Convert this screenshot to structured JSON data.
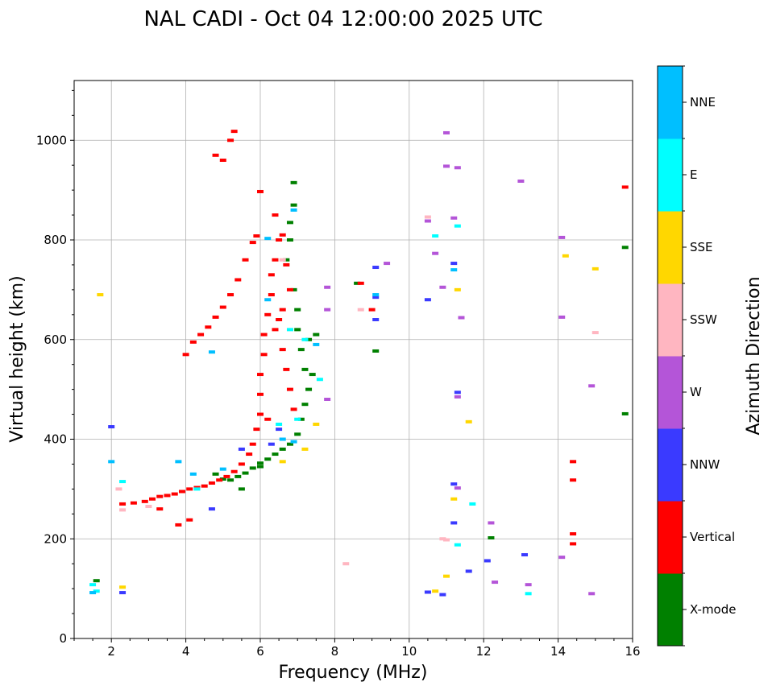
{
  "chart_data": {
    "type": "scatter",
    "title": "NAL CADI - Oct 04 12:00:00 2025 UTC",
    "xlabel": "Frequency (MHz)",
    "ylabel": "Virtual height (km)",
    "xlim": [
      1,
      16
    ],
    "ylim": [
      0,
      1120
    ],
    "xticks": [
      2,
      4,
      6,
      8,
      10,
      12,
      14,
      16
    ],
    "yticks": [
      0,
      200,
      400,
      600,
      800,
      1000
    ],
    "grid": true,
    "colorbar": {
      "title": "Azimuth Direction",
      "categories": [
        {
          "name": "X-mode",
          "color": "#008000"
        },
        {
          "name": "Vertical",
          "color": "#ff0000"
        },
        {
          "name": "NNW",
          "color": "#3a3aff"
        },
        {
          "name": "W",
          "color": "#b455d8"
        },
        {
          "name": "SSW",
          "color": "#ffb6c1"
        },
        {
          "name": "SSE",
          "color": "#ffd700"
        },
        {
          "name": "E",
          "color": "#00ffff"
        },
        {
          "name": "NNE",
          "color": "#00bfff"
        }
      ]
    },
    "series": [
      {
        "name": "X-mode",
        "points": [
          [
            5.0,
            320
          ],
          [
            5.2,
            318
          ],
          [
            5.4,
            325
          ],
          [
            5.6,
            332
          ],
          [
            5.8,
            342
          ],
          [
            6.0,
            352
          ],
          [
            6.2,
            360
          ],
          [
            6.4,
            370
          ],
          [
            6.6,
            380
          ],
          [
            6.8,
            390
          ],
          [
            7.0,
            410
          ],
          [
            7.1,
            440
          ],
          [
            7.2,
            470
          ],
          [
            7.3,
            500
          ],
          [
            7.2,
            540
          ],
          [
            7.1,
            580
          ],
          [
            7.0,
            620
          ],
          [
            7.3,
            600
          ],
          [
            7.5,
            610
          ],
          [
            7.0,
            660
          ],
          [
            6.9,
            700
          ],
          [
            6.7,
            760
          ],
          [
            6.8,
            800
          ],
          [
            6.8,
            835
          ],
          [
            6.9,
            870
          ],
          [
            6.9,
            915
          ],
          [
            9.1,
            577
          ],
          [
            8.6,
            713
          ],
          [
            12.2,
            202
          ],
          [
            15.8,
            785
          ],
          [
            15.8,
            451
          ],
          [
            1.6,
            116
          ],
          [
            5.5,
            300
          ],
          [
            4.8,
            330
          ],
          [
            6.0,
            345
          ],
          [
            7.4,
            530
          ]
        ]
      },
      {
        "name": "Vertical",
        "points": [
          [
            2.3,
            270
          ],
          [
            2.6,
            272
          ],
          [
            2.9,
            275
          ],
          [
            3.1,
            280
          ],
          [
            3.3,
            285
          ],
          [
            3.5,
            287
          ],
          [
            3.7,
            290
          ],
          [
            3.9,
            295
          ],
          [
            4.1,
            300
          ],
          [
            4.3,
            303
          ],
          [
            4.5,
            306
          ],
          [
            4.7,
            312
          ],
          [
            4.9,
            318
          ],
          [
            5.1,
            325
          ],
          [
            5.3,
            335
          ],
          [
            5.5,
            350
          ],
          [
            5.7,
            370
          ],
          [
            5.8,
            390
          ],
          [
            5.9,
            420
          ],
          [
            6.0,
            450
          ],
          [
            6.0,
            490
          ],
          [
            6.0,
            530
          ],
          [
            6.1,
            570
          ],
          [
            6.1,
            610
          ],
          [
            6.2,
            650
          ],
          [
            6.3,
            690
          ],
          [
            6.3,
            730
          ],
          [
            6.4,
            760
          ],
          [
            6.5,
            800
          ],
          [
            6.4,
            850
          ],
          [
            6.6,
            810
          ],
          [
            6.7,
            750
          ],
          [
            6.8,
            700
          ],
          [
            6.6,
            660
          ],
          [
            6.4,
            620
          ],
          [
            6.6,
            580
          ],
          [
            6.7,
            540
          ],
          [
            6.8,
            500
          ],
          [
            6.9,
            460
          ],
          [
            6.5,
            640
          ],
          [
            4.0,
            570
          ],
          [
            4.2,
            595
          ],
          [
            4.4,
            610
          ],
          [
            4.6,
            625
          ],
          [
            4.8,
            645
          ],
          [
            5.0,
            665
          ],
          [
            5.2,
            690
          ],
          [
            5.4,
            720
          ],
          [
            5.6,
            760
          ],
          [
            5.8,
            795
          ],
          [
            5.9,
            808
          ],
          [
            4.8,
            970
          ],
          [
            5.0,
            960
          ],
          [
            5.2,
            1000
          ],
          [
            5.3,
            1018
          ],
          [
            6.0,
            897
          ],
          [
            8.7,
            713
          ],
          [
            9.0,
            660
          ],
          [
            14.4,
            355
          ],
          [
            14.4,
            318
          ],
          [
            14.4,
            210
          ],
          [
            14.4,
            190
          ],
          [
            15.8,
            906
          ],
          [
            3.8,
            228
          ],
          [
            4.1,
            238
          ],
          [
            3.3,
            260
          ],
          [
            6.2,
            440
          ]
        ]
      },
      {
        "name": "NNW",
        "points": [
          [
            2.3,
            92
          ],
          [
            2.0,
            425
          ],
          [
            9.1,
            745
          ],
          [
            9.1,
            640
          ],
          [
            9.1,
            685
          ],
          [
            10.5,
            680
          ],
          [
            10.5,
            93
          ],
          [
            10.9,
            88
          ],
          [
            11.2,
            753
          ],
          [
            11.3,
            494
          ],
          [
            11.2,
            310
          ],
          [
            11.2,
            232
          ],
          [
            11.6,
            135
          ],
          [
            12.1,
            156
          ],
          [
            13.1,
            168
          ],
          [
            4.7,
            260
          ],
          [
            5.5,
            380
          ],
          [
            6.5,
            420
          ],
          [
            6.3,
            390
          ]
        ]
      },
      {
        "name": "W",
        "points": [
          [
            7.8,
            705
          ],
          [
            7.8,
            660
          ],
          [
            7.8,
            480
          ],
          [
            9.4,
            753
          ],
          [
            10.5,
            838
          ],
          [
            10.7,
            773
          ],
          [
            11.0,
            1015
          ],
          [
            11.0,
            948
          ],
          [
            11.3,
            945
          ],
          [
            11.2,
            844
          ],
          [
            11.4,
            644
          ],
          [
            11.3,
            485
          ],
          [
            11.3,
            302
          ],
          [
            12.2,
            232
          ],
          [
            12.3,
            113
          ],
          [
            13.0,
            918
          ],
          [
            13.2,
            108
          ],
          [
            14.1,
            805
          ],
          [
            14.1,
            645
          ],
          [
            14.1,
            163
          ],
          [
            14.9,
            507
          ],
          [
            14.9,
            90
          ],
          [
            10.9,
            705
          ]
        ]
      },
      {
        "name": "SSW",
        "points": [
          [
            2.2,
            300
          ],
          [
            2.3,
            258
          ],
          [
            8.3,
            150
          ],
          [
            8.7,
            660
          ],
          [
            10.5,
            846
          ],
          [
            10.9,
            200
          ],
          [
            11.0,
            198
          ],
          [
            15.0,
            614
          ],
          [
            6.6,
            760
          ],
          [
            3.0,
            265
          ]
        ]
      },
      {
        "name": "SSE",
        "points": [
          [
            1.7,
            690
          ],
          [
            2.3,
            103
          ],
          [
            10.7,
            95
          ],
          [
            11.0,
            125
          ],
          [
            11.2,
            280
          ],
          [
            11.3,
            700
          ],
          [
            11.6,
            435
          ],
          [
            14.2,
            768
          ],
          [
            15.0,
            742
          ],
          [
            6.6,
            355
          ],
          [
            7.2,
            380
          ],
          [
            7.5,
            430
          ]
        ]
      },
      {
        "name": "E",
        "points": [
          [
            1.5,
            108
          ],
          [
            1.6,
            95
          ],
          [
            2.3,
            315
          ],
          [
            10.7,
            808
          ],
          [
            11.3,
            828
          ],
          [
            11.3,
            188
          ],
          [
            11.7,
            270
          ],
          [
            13.2,
            90
          ],
          [
            6.8,
            620
          ],
          [
            7.2,
            600
          ],
          [
            7.6,
            520
          ],
          [
            7.0,
            440
          ],
          [
            6.5,
            430
          ],
          [
            4.3,
            300
          ]
        ]
      },
      {
        "name": "NNE",
        "points": [
          [
            1.5,
            92
          ],
          [
            2.0,
            355
          ],
          [
            3.8,
            355
          ],
          [
            4.7,
            575
          ],
          [
            9.1,
            690
          ],
          [
            11.2,
            740
          ],
          [
            6.2,
            803
          ],
          [
            6.2,
            680
          ],
          [
            6.9,
            860
          ],
          [
            4.2,
            330
          ],
          [
            5.0,
            340
          ],
          [
            7.5,
            590
          ],
          [
            6.6,
            400
          ],
          [
            6.9,
            395
          ]
        ]
      }
    ]
  }
}
